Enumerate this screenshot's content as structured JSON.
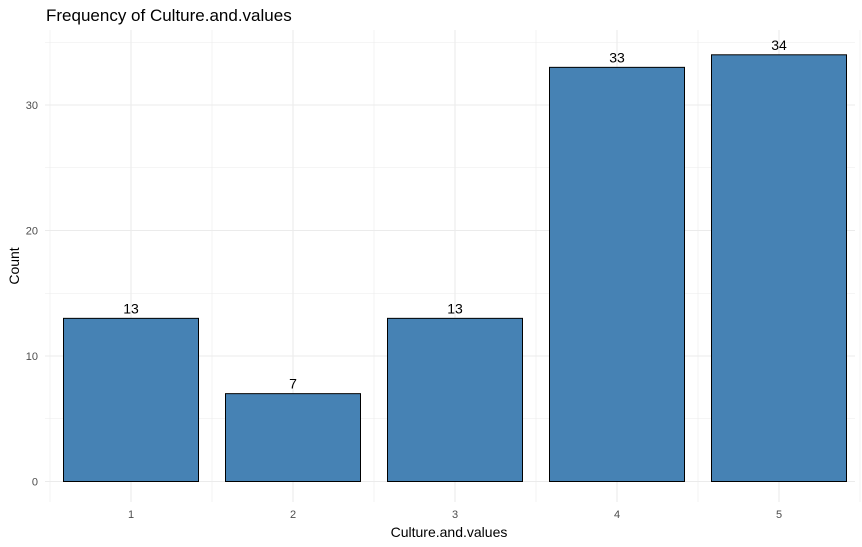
{
  "chart_data": {
    "type": "bar",
    "title": "Frequency of Culture.and.values",
    "xlabel": "Culture.and.values",
    "ylabel": "Count",
    "categories": [
      "1",
      "2",
      "3",
      "4",
      "5"
    ],
    "values": [
      13,
      7,
      13,
      33,
      34
    ],
    "data_labels": [
      "13",
      "7",
      "13",
      "33",
      "34"
    ],
    "yticks": [
      0,
      10,
      20,
      30
    ],
    "ylim": [
      0,
      35.7
    ],
    "grid": true,
    "bar_color": "#4682B4",
    "bar_outline": "#000000",
    "gridline_color": "#ebebeb"
  }
}
